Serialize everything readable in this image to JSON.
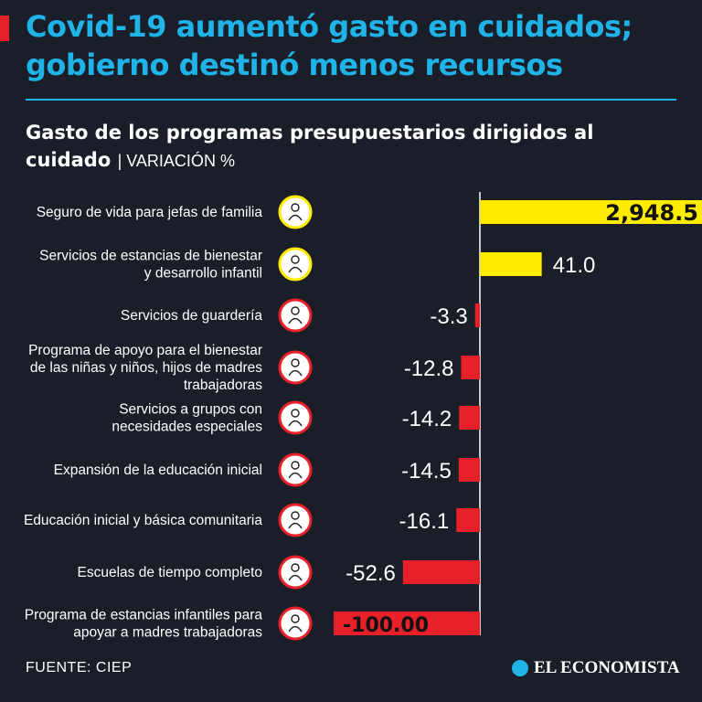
{
  "header": {
    "title": "Covid-19 aumentó gasto en cuidados; gobierno destinó menos recursos",
    "subtitle": "Gasto de los programas presupuestarios dirigidos al cuidado",
    "unit": "| VARIACIÓN %"
  },
  "colors": {
    "positive": "#ffec00",
    "negative": "#e8202a",
    "accent": "#1fb3e8",
    "background": "#1a1e29"
  },
  "chart_data": {
    "type": "bar",
    "orientation": "horizontal",
    "categories": [
      [
        "Seguro de vida para jefas de familia"
      ],
      [
        "Servicios de estancias de bienestar",
        "y desarrollo infantil"
      ],
      [
        "Servicios de guardería"
      ],
      [
        "Programa de apoyo para el bienestar",
        "de las niñas y niños, hijos de madres",
        "trabajadoras"
      ],
      [
        "Servicios a grupos con",
        "necesidades especiales"
      ],
      [
        "Expansión de la educación inicial"
      ],
      [
        "Educación inicial y básica comunitaria"
      ],
      [
        "Escuelas de tiempo completo"
      ],
      [
        "Programa de estancias infantiles para",
        "apoyar a madres trabajadoras"
      ]
    ],
    "values": [
      2948.5,
      41.0,
      -3.3,
      -12.8,
      -14.2,
      -14.5,
      -16.1,
      -52.6,
      -100.0
    ],
    "value_labels": [
      "2,948.5",
      "41.0",
      "-3.3",
      "-12.8",
      "-14.2",
      "-14.5",
      "-16.1",
      "-52.6",
      "-100.00"
    ],
    "icons": [
      "family-icon",
      "childcare-icon",
      "nurse-icon",
      "children-support-icon",
      "special-needs-icon",
      "early-education-icon",
      "community-education-icon",
      "classroom-icon",
      "mother-child-icon"
    ],
    "title": "Gasto de los programas presupuestarios dirigidos al cuidado",
    "xlabel": "Variación %",
    "note": "Bar for 2,948.5 is truncated (broken scale)"
  },
  "footer": {
    "source": "FUENTE: CIEP",
    "brand": "EL ECONOMISTA"
  }
}
